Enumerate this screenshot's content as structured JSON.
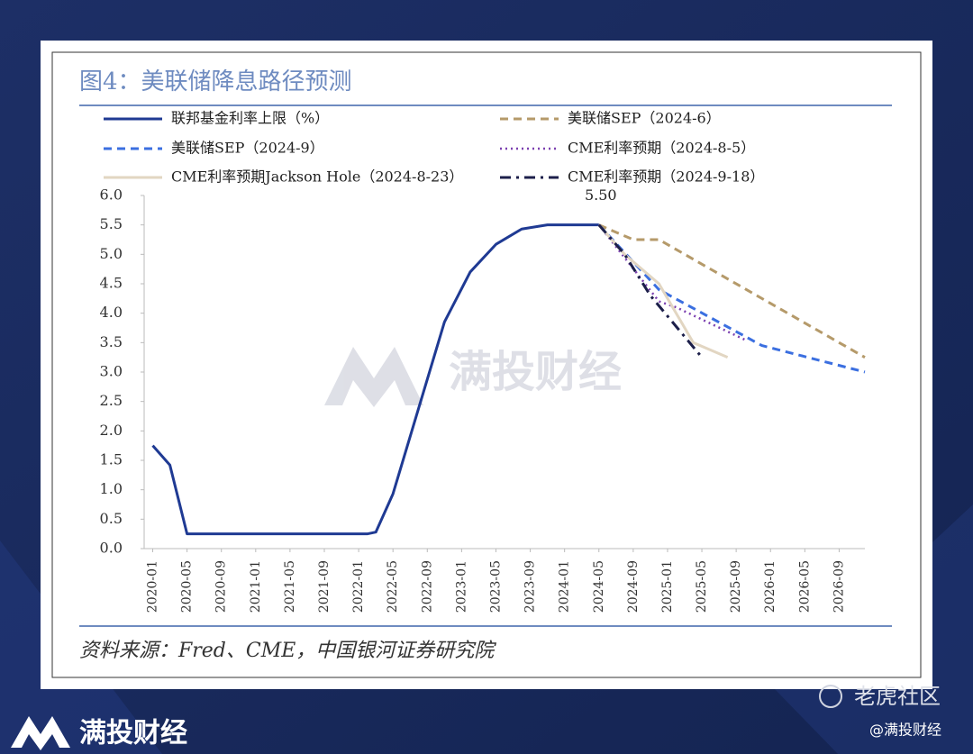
{
  "page": {
    "brand": "满投财经",
    "community": "老虎社区",
    "handle": "@满投财经"
  },
  "chart_data": {
    "type": "line",
    "title": "图4：美联储降息路径预测",
    "source": "资料来源：Fred、CME，中国银河证券研究院",
    "watermark": "满投财经",
    "annotation": "5.50",
    "legend": "top",
    "xlim": [
      "2019-12",
      "2026-12"
    ],
    "xticks": [
      "2020-01",
      "2020-05",
      "2020-09",
      "2021-01",
      "2021-05",
      "2021-09",
      "2022-01",
      "2022-05",
      "2022-09",
      "2023-01",
      "2023-05",
      "2023-09",
      "2024-01",
      "2024-05",
      "2024-09",
      "2025-01",
      "2025-05",
      "2025-09",
      "2026-01",
      "2026-05",
      "2026-09"
    ],
    "ylim": [
      0,
      6
    ],
    "yticks": [
      {
        "value": 0,
        "label": "0.0"
      },
      {
        "value": 0.5,
        "label": "0.5"
      },
      {
        "value": 1,
        "label": "1.0"
      },
      {
        "value": 1.5,
        "label": "1.5"
      },
      {
        "value": 2,
        "label": "2.0"
      },
      {
        "value": 2.5,
        "label": "2.5"
      },
      {
        "value": 3,
        "label": "3.0"
      },
      {
        "value": 3.5,
        "label": "3.5"
      },
      {
        "value": 4,
        "label": "4.0"
      },
      {
        "value": 4.5,
        "label": "4.5"
      },
      {
        "value": 5,
        "label": "5.0"
      },
      {
        "value": 5.5,
        "label": "5.5"
      },
      {
        "value": 6,
        "label": "6.0"
      }
    ],
    "series": [
      {
        "name": "联邦基金利率上限（%）",
        "color": "#1f3a93",
        "style": "solid",
        "x": [
          "2020-01",
          "2020-03",
          "2020-05",
          "2022-02",
          "2022-03",
          "2022-05",
          "2022-11",
          "2023-02",
          "2023-05",
          "2023-08",
          "2023-11",
          "2024-05"
        ],
        "values": [
          1.75,
          1.42,
          0.25,
          0.25,
          0.28,
          0.93,
          3.85,
          4.7,
          5.17,
          5.43,
          5.5,
          5.5
        ]
      },
      {
        "name": "美联储SEP（2024-6）",
        "color": "#b59a6a",
        "style": "dashed",
        "x": [
          "2024-05",
          "2024-09",
          "2024-12",
          "2026-12"
        ],
        "values": [
          5.5,
          5.25,
          5.25,
          3.25
        ]
      },
      {
        "name": "美联储SEP（2024-9）",
        "color": "#3b6fe0",
        "style": "dashed",
        "x": [
          "2024-05",
          "2024-12",
          "2025-12",
          "2026-12"
        ],
        "values": [
          5.5,
          4.4,
          3.45,
          3.0
        ]
      },
      {
        "name": "CME利率预期（2024-8-5）",
        "color": "#7b3fb0",
        "style": "dotted",
        "x": [
          "2024-05",
          "2024-12",
          "2025-02",
          "2025-10"
        ],
        "values": [
          5.5,
          4.2,
          4.1,
          3.55
        ]
      },
      {
        "name": "CME利率预期Jackson Hole（2024-8-23）",
        "color": "#e2d6c2",
        "style": "solid",
        "x": [
          "2024-05",
          "2024-08",
          "2024-12",
          "2025-04",
          "2025-08"
        ],
        "values": [
          5.5,
          5.0,
          4.5,
          3.5,
          3.25
        ]
      },
      {
        "name": "CME利率预期（2024-9-18）",
        "color": "#1c1f4a",
        "style": "dashdot",
        "x": [
          "2024-05",
          "2024-08",
          "2024-11",
          "2025-05"
        ],
        "values": [
          5.5,
          5.0,
          4.3,
          3.25
        ]
      }
    ]
  }
}
